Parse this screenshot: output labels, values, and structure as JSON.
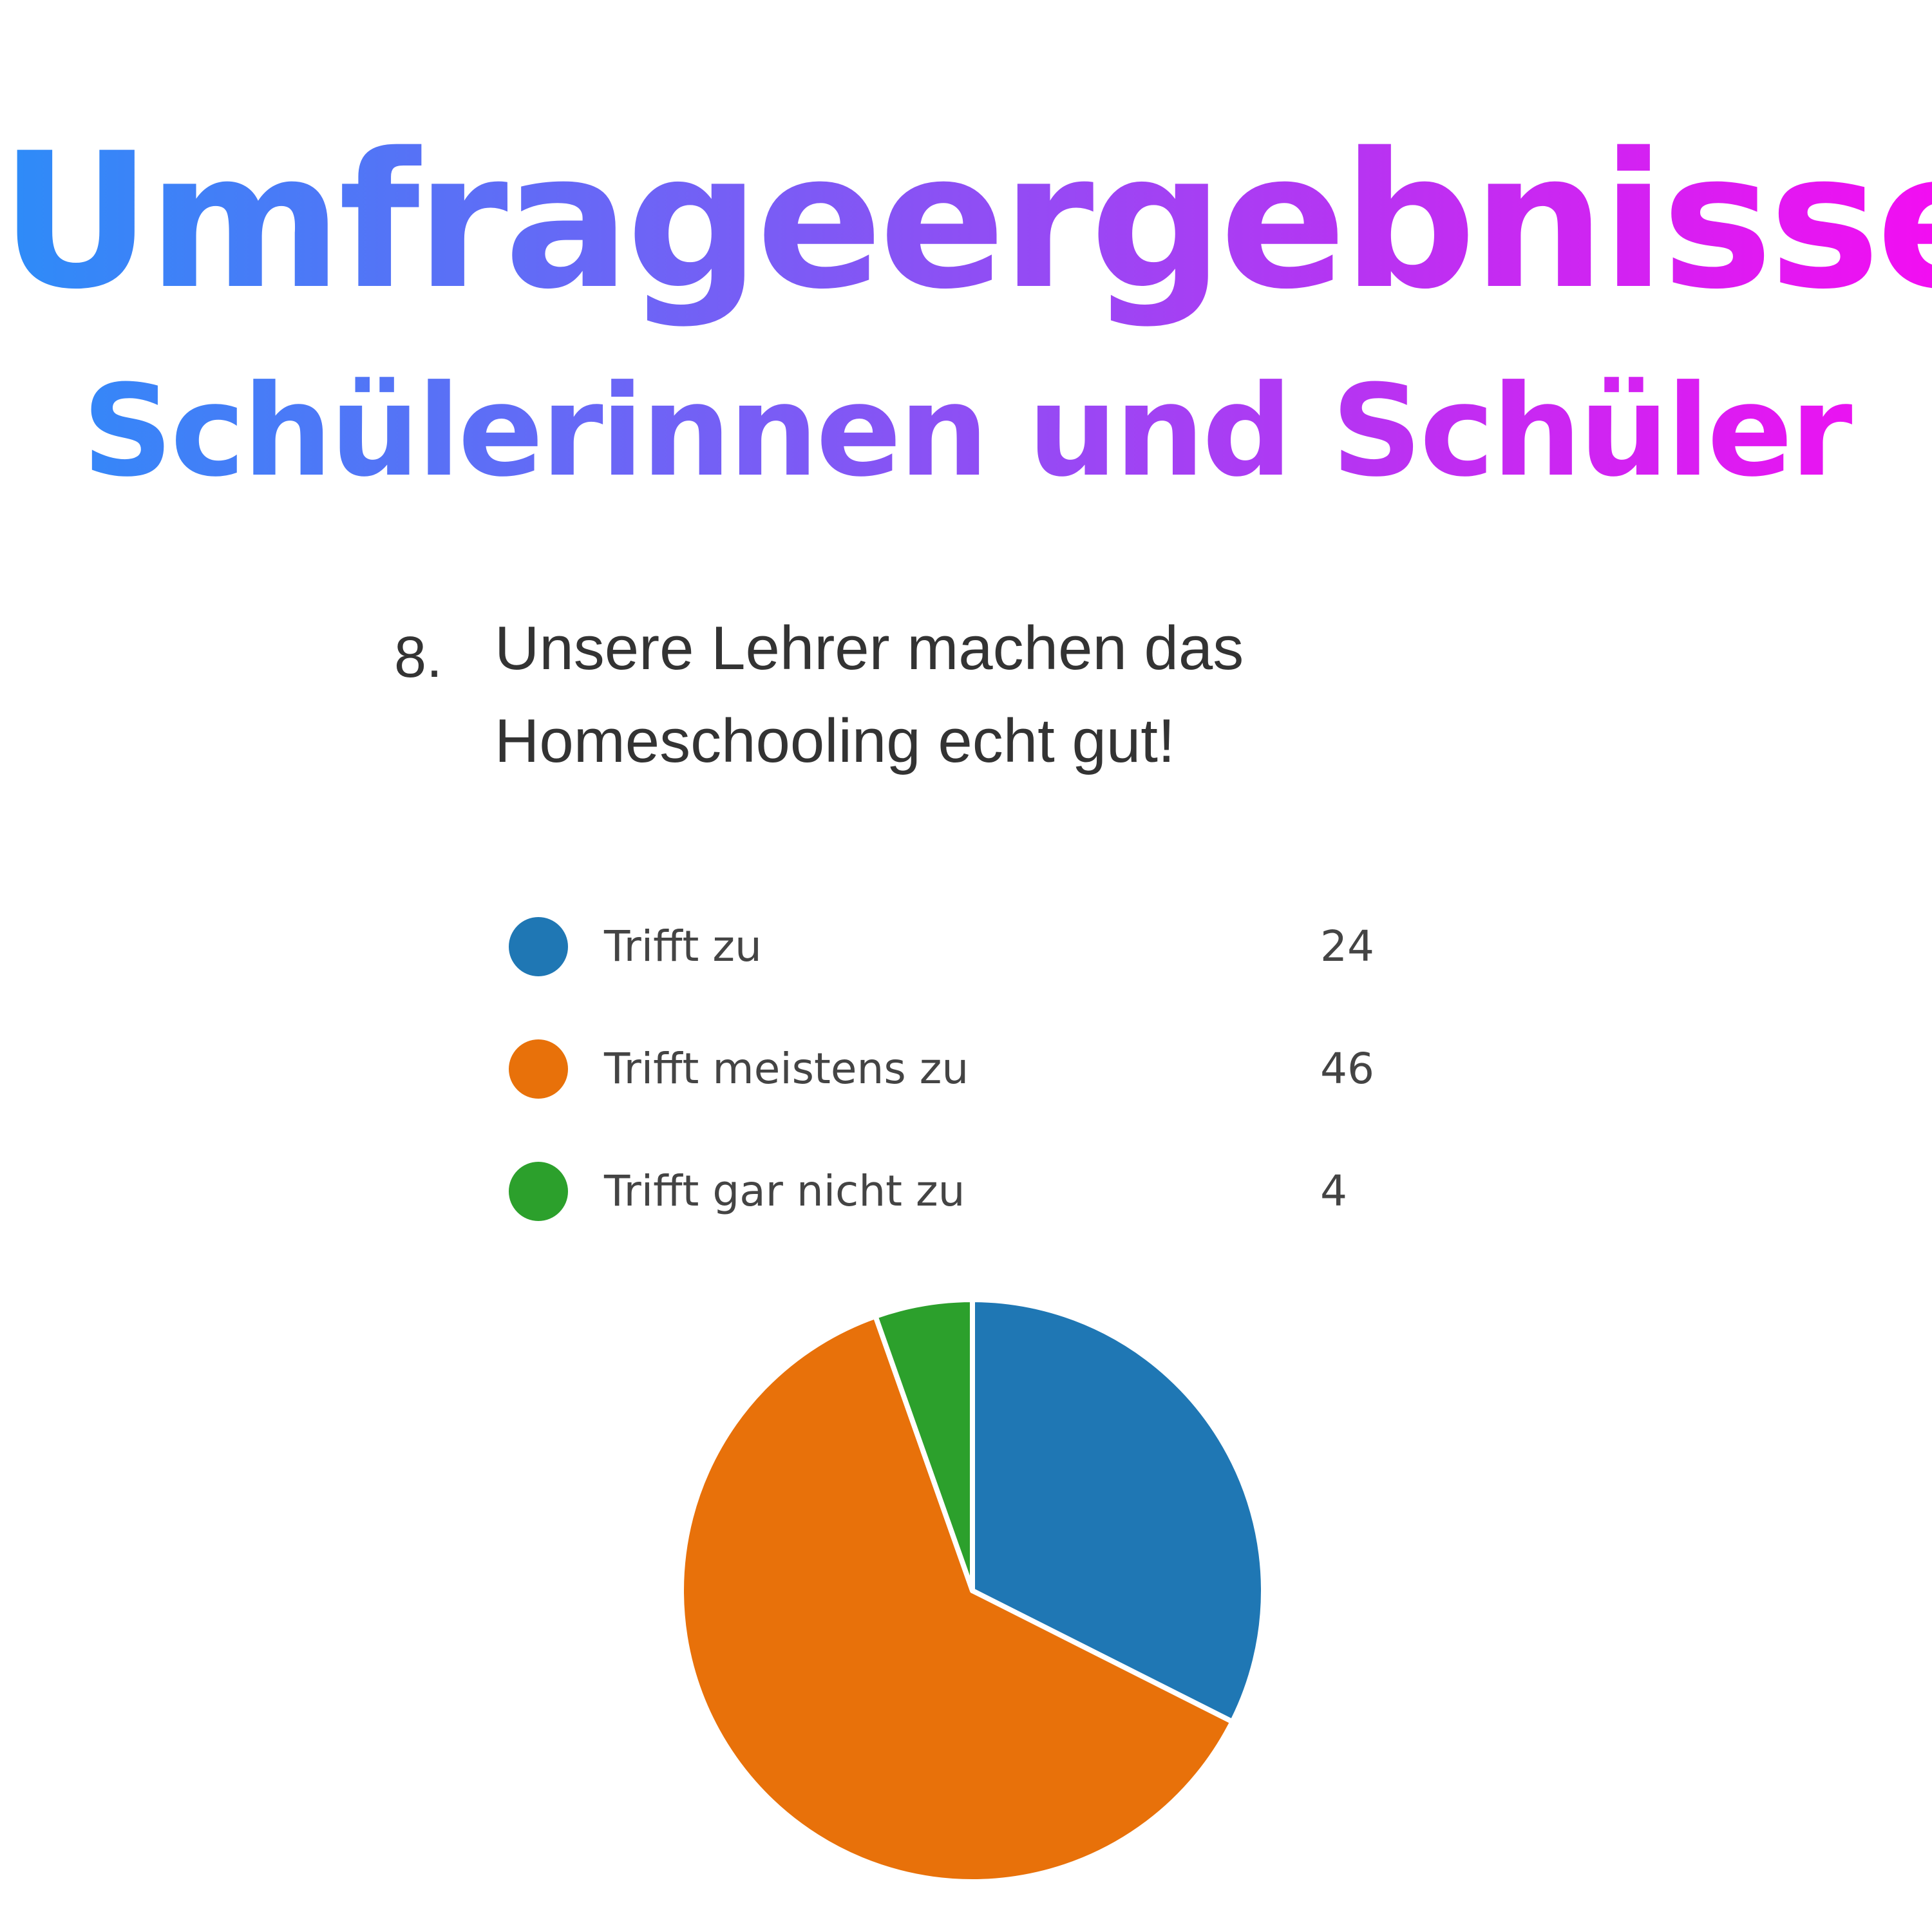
{
  "header": {
    "title": "Umfrageergebnisse",
    "subtitle": "Schülerinnen und Schüler"
  },
  "question": {
    "number": "8.",
    "line1": "Unsere Lehrer machen das",
    "line2": "Homeschooling echt gut!"
  },
  "chart_data": {
    "type": "pie",
    "categories": [
      "Trifft zu",
      "Trifft meistens zu",
      "Trifft gar nicht zu"
    ],
    "values": [
      24,
      46,
      4
    ],
    "colors": [
      "#1f77b4",
      "#e8710a",
      "#2ca02c"
    ],
    "legend_position": "top",
    "title": "",
    "start_angle": "12 o'clock, clockwise"
  }
}
